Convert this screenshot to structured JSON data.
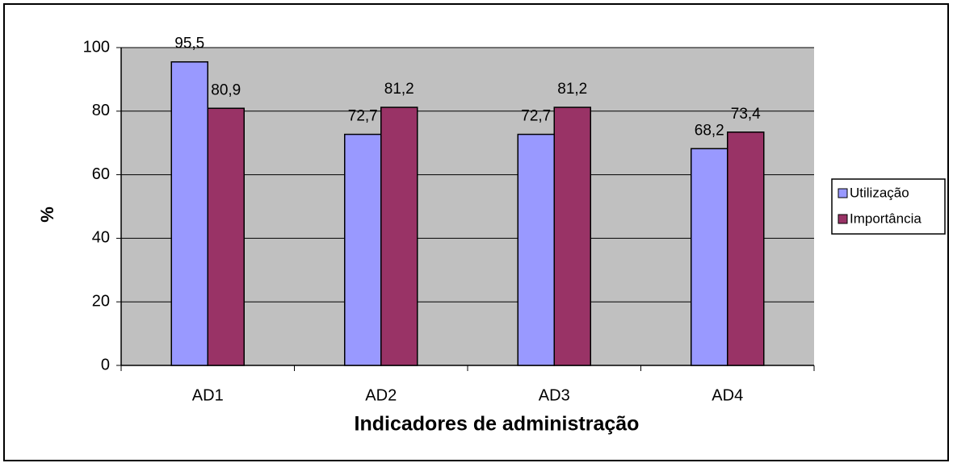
{
  "chart_data": {
    "type": "bar",
    "xlabel": "Indicadores de administração",
    "ylabel": "%",
    "categories": [
      "AD1",
      "AD2",
      "AD3",
      "AD4"
    ],
    "series": [
      {
        "name": "Utilização",
        "color": "#9999ff",
        "values": [
          95.5,
          72.7,
          72.7,
          68.2
        ],
        "value_labels": [
          "95,5",
          "72,7",
          "72,7",
          "68,2"
        ]
      },
      {
        "name": "Importância",
        "color": "#993366",
        "values": [
          80.9,
          81.2,
          81.2,
          73.4
        ],
        "value_labels": [
          "80,9",
          "81,2",
          "81,2",
          "73,4"
        ]
      }
    ],
    "ylim": [
      0,
      100
    ],
    "yticks": [
      0,
      20,
      40,
      60,
      80,
      100
    ],
    "grid": true,
    "legend": "right"
  }
}
